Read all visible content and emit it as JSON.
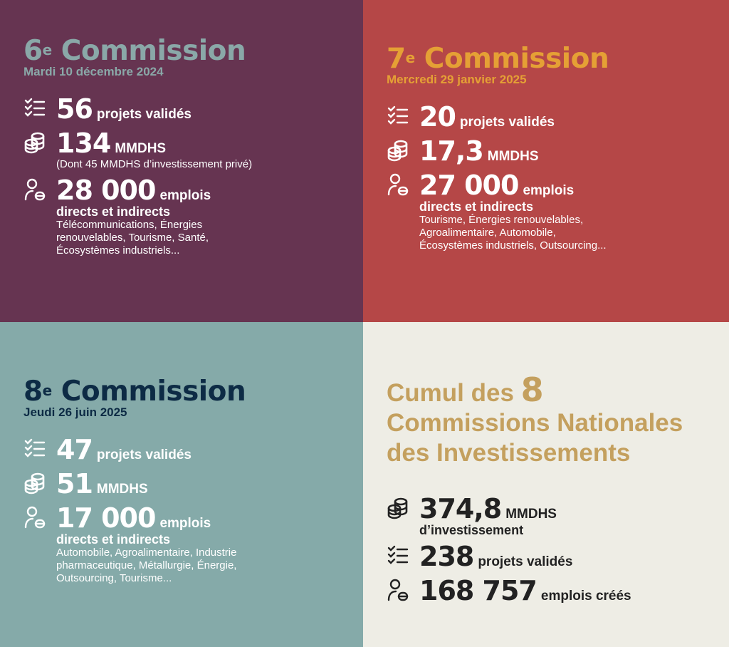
{
  "colors": {
    "q1_bg": "#663451",
    "q2_bg": "#b54747",
    "q3_bg": "#85aaa9",
    "q4_bg": "#eeede5",
    "q1_title": "#8aa8a8",
    "q2_title": "#e5a035",
    "q3_title": "#0d2b45",
    "q4_title": "#c4a05e"
  },
  "c6": {
    "num": "6",
    "sup": "e",
    "title": "Commission",
    "date": "Mardi 10 décembre 2024",
    "projects": {
      "value": "56",
      "label": "projets validés"
    },
    "invest": {
      "value": "134",
      "label": "MMDHS",
      "note": "(Dont 45 MMDHS d’investissement privé)"
    },
    "jobs": {
      "value": "28 000",
      "label": "emplois",
      "sub": "directs et indirects",
      "sectors": "Télécommunications, Énergies renouvelables, Tourisme, Santé, Écosystèmes industriels..."
    }
  },
  "c7": {
    "num": "7",
    "sup": "e",
    "title": "Commission",
    "date": "Mercredi 29 janvier 2025",
    "projects": {
      "value": "20",
      "label": "projets validés"
    },
    "invest": {
      "value": "17,3",
      "label": "MMDHS"
    },
    "jobs": {
      "value": "27 000",
      "label": "emplois",
      "sub": "directs et indirects",
      "sectors": "Tourisme, Énergies renouvelables, Agroalimentaire, Automobile, Écosystèmes industriels, Outsourcing..."
    }
  },
  "c8": {
    "num": "8",
    "sup": "e",
    "title": "Commission",
    "date": "Jeudi 26 juin 2025",
    "projects": {
      "value": "47",
      "label": "projets validés"
    },
    "invest": {
      "value": "51",
      "label": "MMDHS"
    },
    "jobs": {
      "value": "17 000",
      "label": "emplois",
      "sub": "directs et indirects",
      "sectors": "Automobile, Agroalimentaire, Industrie pharmaceutique, Métallurgie, Énergie, Outsourcing, Tourisme..."
    }
  },
  "cumul": {
    "title_a": "Cumul des",
    "title_num": "8",
    "title_b": "Commissions Nationales",
    "title_c": "des Investissements",
    "invest": {
      "value": "374,8",
      "label": "MMDHS",
      "sub": "d’investissement"
    },
    "projects": {
      "value": "238",
      "label": "projets validés"
    },
    "jobs": {
      "value": "168 757",
      "label": "emplois créés"
    }
  },
  "icons": [
    "checklist-icon",
    "coins-icon",
    "employee-icon"
  ]
}
